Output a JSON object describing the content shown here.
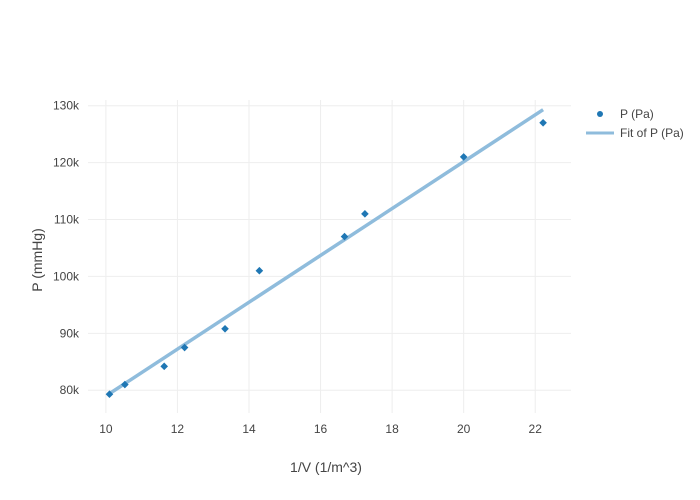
{
  "chart_data": {
    "type": "scatter",
    "title": "",
    "xlabel": "1/V (1/m^3)",
    "ylabel": "P (mmHg)",
    "xlim": [
      9.5,
      23
    ],
    "ylim": [
      76000,
      131000
    ],
    "x_ticks": [
      10,
      12,
      14,
      16,
      18,
      20,
      22
    ],
    "x_tick_labels": [
      "10",
      "12",
      "14",
      "16",
      "18",
      "20",
      "22"
    ],
    "y_ticks": [
      80000,
      90000,
      100000,
      110000,
      120000,
      130000
    ],
    "y_tick_labels": [
      "80k",
      "90k",
      "100k",
      "110k",
      "120k",
      "130k"
    ],
    "grid": true,
    "legend_position": "top-right",
    "series": [
      {
        "name": "P (Pa)",
        "kind": "markers",
        "color": "#1f77b4",
        "x": [
          10.1,
          10.53,
          11.63,
          12.2,
          13.33,
          14.29,
          16.67,
          17.24,
          20.0,
          22.22
        ],
        "y": [
          79300,
          81000,
          84200,
          87500,
          90800,
          101000,
          107000,
          111000,
          121000,
          127000
        ]
      },
      {
        "name": "Fit of P (Pa)",
        "kind": "line",
        "color": "#8fbcdc",
        "x": [
          10.1,
          22.22
        ],
        "y": [
          79400,
          129300
        ]
      }
    ]
  }
}
